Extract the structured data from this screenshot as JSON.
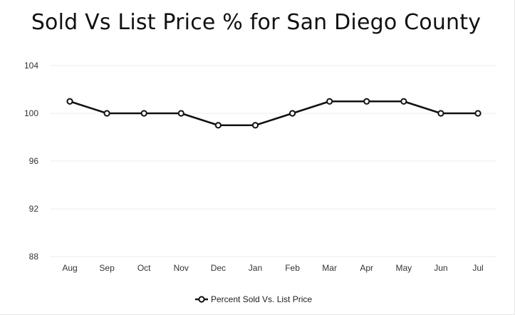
{
  "chart_data": {
    "type": "line",
    "title": "Sold Vs List Price % for San Diego County",
    "xlabel": "",
    "ylabel": "",
    "categories": [
      "Aug",
      "Sep",
      "Oct",
      "Nov",
      "Dec",
      "Jan",
      "Feb",
      "Mar",
      "Apr",
      "May",
      "Jun",
      "Jul"
    ],
    "series": [
      {
        "name": "Percent Sold Vs. List Price",
        "values": [
          101,
          100,
          100,
          100,
          99,
          99,
          100,
          101,
          101,
          101,
          100,
          100
        ],
        "color": "#111111"
      }
    ],
    "ylim": [
      88,
      104
    ],
    "yticks": [
      88,
      92,
      96,
      100,
      104
    ],
    "grid": true,
    "legend_position": "bottom-center"
  }
}
